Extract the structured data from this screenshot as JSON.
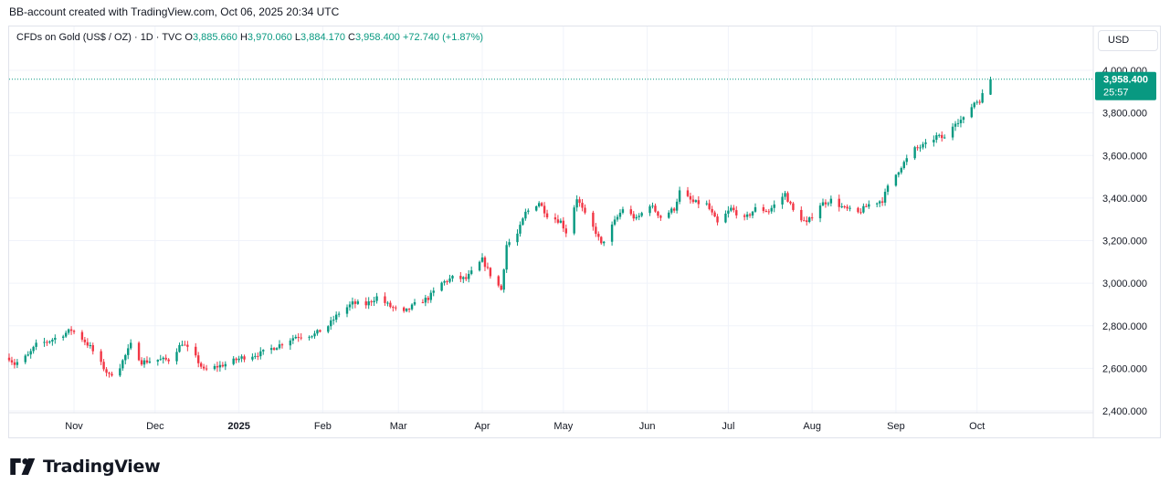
{
  "header": {
    "attribution": "BB-account created with TradingView.com, Oct 06, 2025 20:34 UTC"
  },
  "legend": {
    "symbol": "CFDs on Gold (US$ / OZ) · 1D · TVC",
    "open_label": "O",
    "open": "3,885.660",
    "high_label": "H",
    "high": "3,970.060",
    "low_label": "L",
    "low": "3,884.170",
    "close_label": "C",
    "close": "3,958.400",
    "change": "+72.740 (+1.87%)"
  },
  "currency_button": {
    "label": "USD"
  },
  "price_tag": {
    "price": "3,958.400",
    "countdown": "25:57"
  },
  "brand": {
    "name": "TradingView"
  },
  "colors": {
    "up": "#089981",
    "down": "#f23645",
    "grid": "#f0f3fa",
    "axis_text": "#131722",
    "last_price_line": "#089981"
  },
  "chart_data": {
    "type": "candlestick",
    "title": "CFDs on Gold (US$ / OZ) · 1D · TVC",
    "ylim": [
      2400,
      4000
    ],
    "y_ticks": [
      "2,400.000",
      "2,600.000",
      "2,800.000",
      "3,000.000",
      "3,200.000",
      "3,400.000",
      "3,600.000",
      "3,800.000",
      "4,000.000"
    ],
    "y_tick_values": [
      2400,
      2600,
      2800,
      3000,
      3200,
      3400,
      3600,
      3800,
      4000
    ],
    "x_ticks": [
      "Nov",
      "Dec",
      "2025",
      "Feb",
      "Mar",
      "Apr",
      "May",
      "Jun",
      "Jul",
      "Aug",
      "Sep",
      "Oct"
    ],
    "x_tick_dates": [
      "2024-11-01",
      "2024-12-01",
      "2025-01-01",
      "2025-02-01",
      "2025-03-01",
      "2025-04-01",
      "2025-05-01",
      "2025-06-01",
      "2025-07-01",
      "2025-08-01",
      "2025-09-01",
      "2025-10-01"
    ],
    "x_range": [
      "2024-10-08",
      "2025-11-13"
    ],
    "last_price": 3958.4,
    "grid": true,
    "trend_closes": [
      [
        "2024-10-08",
        2650
      ],
      [
        "2024-10-10",
        2620
      ],
      [
        "2024-10-15",
        2660
      ],
      [
        "2024-10-18",
        2710
      ],
      [
        "2024-10-23",
        2730
      ],
      [
        "2024-10-28",
        2760
      ],
      [
        "2024-10-31",
        2780
      ],
      [
        "2024-11-04",
        2740
      ],
      [
        "2024-11-07",
        2700
      ],
      [
        "2024-11-11",
        2620
      ],
      [
        "2024-11-14",
        2565
      ],
      [
        "2024-11-18",
        2610
      ],
      [
        "2024-11-22",
        2710
      ],
      [
        "2024-11-26",
        2630
      ],
      [
        "2024-12-02",
        2640
      ],
      [
        "2024-12-06",
        2640
      ],
      [
        "2024-12-11",
        2720
      ],
      [
        "2024-12-16",
        2650
      ],
      [
        "2024-12-19",
        2590
      ],
      [
        "2024-12-27",
        2620
      ],
      [
        "2025-01-02",
        2650
      ],
      [
        "2025-01-09",
        2670
      ],
      [
        "2025-01-16",
        2710
      ],
      [
        "2025-01-22",
        2750
      ],
      [
        "2025-01-29",
        2760
      ],
      [
        "2025-02-03",
        2800
      ],
      [
        "2025-02-07",
        2860
      ],
      [
        "2025-02-12",
        2905
      ],
      [
        "2025-02-17",
        2900
      ],
      [
        "2025-02-21",
        2935
      ],
      [
        "2025-02-26",
        2890
      ],
      [
        "2025-03-03",
        2860
      ],
      [
        "2025-03-07",
        2900
      ],
      [
        "2025-03-12",
        2930
      ],
      [
        "2025-03-17",
        3000
      ],
      [
        "2025-03-21",
        3025
      ],
      [
        "2025-03-26",
        3020
      ],
      [
        "2025-04-01",
        3110
      ],
      [
        "2025-04-04",
        3040
      ],
      [
        "2025-04-08",
        2970
      ],
      [
        "2025-04-10",
        3180
      ],
      [
        "2025-04-14",
        3230
      ],
      [
        "2025-04-17",
        3330
      ],
      [
        "2025-04-22",
        3380
      ],
      [
        "2025-04-25",
        3320
      ],
      [
        "2025-04-30",
        3290
      ],
      [
        "2025-05-02",
        3240
      ],
      [
        "2025-05-06",
        3400
      ],
      [
        "2025-05-09",
        3320
      ],
      [
        "2025-05-13",
        3240
      ],
      [
        "2025-05-15",
        3180
      ],
      [
        "2025-05-20",
        3290
      ],
      [
        "2025-05-23",
        3350
      ],
      [
        "2025-05-28",
        3300
      ],
      [
        "2025-06-02",
        3370
      ],
      [
        "2025-06-06",
        3310
      ],
      [
        "2025-06-11",
        3350
      ],
      [
        "2025-06-13",
        3430
      ],
      [
        "2025-06-18",
        3380
      ],
      [
        "2025-06-23",
        3370
      ],
      [
        "2025-06-27",
        3280
      ],
      [
        "2025-07-02",
        3350
      ],
      [
        "2025-07-07",
        3300
      ],
      [
        "2025-07-11",
        3350
      ],
      [
        "2025-07-16",
        3340
      ],
      [
        "2025-07-22",
        3420
      ],
      [
        "2025-07-25",
        3340
      ],
      [
        "2025-07-30",
        3280
      ],
      [
        "2025-08-04",
        3370
      ],
      [
        "2025-08-08",
        3390
      ],
      [
        "2025-08-13",
        3350
      ],
      [
        "2025-08-18",
        3330
      ],
      [
        "2025-08-22",
        3370
      ],
      [
        "2025-08-27",
        3390
      ],
      [
        "2025-08-29",
        3450
      ],
      [
        "2025-09-03",
        3550
      ],
      [
        "2025-09-08",
        3630
      ],
      [
        "2025-09-12",
        3650
      ],
      [
        "2025-09-16",
        3690
      ],
      [
        "2025-09-19",
        3680
      ],
      [
        "2025-09-23",
        3760
      ],
      [
        "2025-09-26",
        3770
      ],
      [
        "2025-09-30",
        3850
      ],
      [
        "2025-10-02",
        3860
      ],
      [
        "2025-10-03",
        3885.66
      ],
      [
        "2025-10-06",
        3958.4
      ]
    ],
    "last_candle": {
      "date": "2025-10-06",
      "open": 3885.66,
      "high": 3970.06,
      "low": 3884.17,
      "close": 3958.4
    }
  }
}
